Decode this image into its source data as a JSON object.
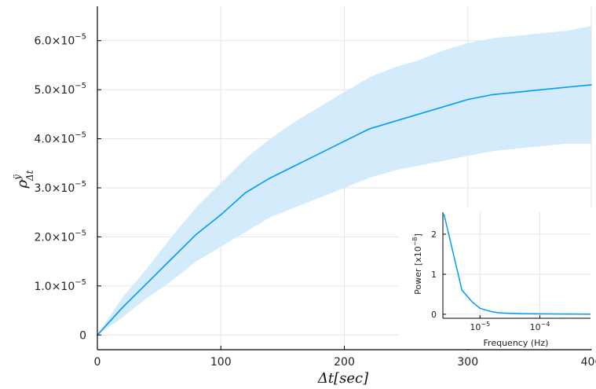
{
  "chart_data": [
    {
      "type": "line",
      "xlabel": "Δt[sec]",
      "ylabel": "ρ^{ÿ}_{Δt}",
      "xlim": [
        0,
        400
      ],
      "ylim": [
        -0.3,
        6.7
      ],
      "y_scale_note": "×10^-5",
      "xticks": [
        0,
        100,
        200,
        300,
        400
      ],
      "xtick_labels": [
        "0",
        "100",
        "200",
        "300",
        "400"
      ],
      "yticks": [
        0,
        1,
        2,
        3,
        4,
        5,
        6
      ],
      "ytick_labels": [
        {
          "mant": "0",
          "exp": ""
        },
        {
          "mant": "1.0×10",
          "exp": "−5"
        },
        {
          "mant": "2.0×10",
          "exp": "−5"
        },
        {
          "mant": "3.0×10",
          "exp": "−5"
        },
        {
          "mant": "4.0×10",
          "exp": "−5"
        },
        {
          "mant": "5.0×10",
          "exp": "−5"
        },
        {
          "mant": "6.0×10",
          "exp": "−5"
        }
      ],
      "grid": true,
      "colors": {
        "line": "#009af9",
        "band": "#cfe9fb",
        "axis": "#000000",
        "grid": "#e6e6e6"
      },
      "series": [
        {
          "x": [
            0,
            20,
            40,
            60,
            80,
            100,
            120,
            140,
            160,
            180,
            200,
            220,
            240,
            260,
            280,
            300,
            320,
            340,
            360,
            380,
            400
          ],
          "values": [
            0.0,
            0.55,
            1.05,
            1.55,
            2.05,
            2.45,
            2.9,
            3.2,
            3.45,
            3.7,
            3.95,
            4.2,
            4.35,
            4.5,
            4.65,
            4.8,
            4.9,
            4.95,
            5.0,
            5.05,
            5.1
          ],
          "lower": [
            0.0,
            0.35,
            0.75,
            1.1,
            1.5,
            1.8,
            2.1,
            2.4,
            2.6,
            2.8,
            3.0,
            3.2,
            3.35,
            3.45,
            3.55,
            3.65,
            3.75,
            3.8,
            3.85,
            3.9,
            3.9
          ],
          "upper": [
            0.0,
            0.75,
            1.35,
            2.0,
            2.6,
            3.1,
            3.6,
            4.0,
            4.35,
            4.65,
            4.95,
            5.25,
            5.45,
            5.6,
            5.8,
            5.95,
            6.05,
            6.1,
            6.15,
            6.2,
            6.3
          ]
        }
      ]
    },
    {
      "type": "line",
      "xlabel": "Frequency (Hz)",
      "ylabel": "Power [x10^-8]",
      "x_scale": "log",
      "xlim": [
        2.4e-06,
        0.0007
      ],
      "ylim": [
        -0.1,
        2.55
      ],
      "xtick_labels": [
        {
          "value": 1e-05,
          "mant": "10",
          "exp": "−5"
        },
        {
          "value": 0.0001,
          "mant": "10",
          "exp": "−4"
        }
      ],
      "yticks": [
        0,
        1,
        2
      ],
      "ytick_labels": [
        "0",
        "1",
        "2"
      ],
      "grid": true,
      "series": [
        {
          "x": [
            2.5e-06,
            5e-06,
            7.5e-06,
            1e-05,
            1.5e-05,
            2e-05,
            3e-05,
            5e-05,
            0.0001,
            0.0002,
            0.0004,
            0.0007
          ],
          "values": [
            2.5,
            0.6,
            0.3,
            0.15,
            0.07,
            0.04,
            0.025,
            0.015,
            0.01,
            0.008,
            0.006,
            0.005
          ]
        }
      ]
    }
  ]
}
